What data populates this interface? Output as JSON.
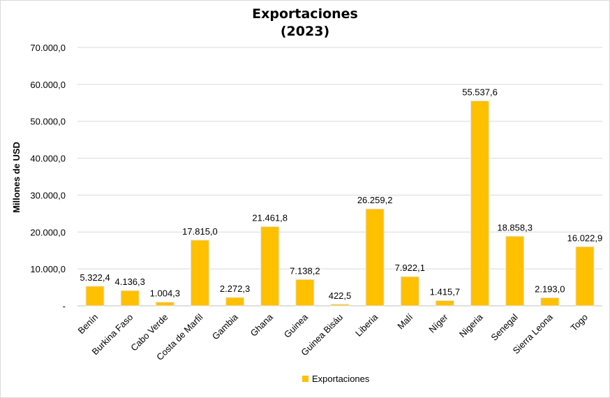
{
  "chart_data": {
    "type": "bar",
    "title": "Exportaciones",
    "subtitle": "(2023)",
    "ylabel": "Millones de USD",
    "xlabel": "",
    "ylim": [
      0,
      70000
    ],
    "yticks": [
      0,
      10000,
      20000,
      30000,
      40000,
      50000,
      60000,
      70000
    ],
    "ytick_labels": [
      "-",
      "10.000,0",
      "20.000,0",
      "30.000,0",
      "40.000,0",
      "50.000,0",
      "60.000,0",
      "70.000,0"
    ],
    "grid": true,
    "legend": "bottom",
    "bar_color": "#FFC000",
    "categories": [
      "Benín",
      "Burkina Faso",
      "Cabo Verde",
      "Costa de Marfil",
      "Gambia",
      "Ghana",
      "Guinea",
      "Guinea Bisáu",
      "Liberia",
      "Malí",
      "Níger",
      "Nigeria",
      "Senegal",
      "Sierra Leona",
      "Togo"
    ],
    "series": [
      {
        "name": "Exportaciones",
        "values": [
          5322.4,
          4136.3,
          1004.3,
          17815.0,
          2272.3,
          21461.8,
          7138.2,
          422.5,
          26259.2,
          7922.1,
          1415.7,
          55537.6,
          18858.3,
          2193.0,
          16022.9
        ],
        "labels": [
          "5.322,4",
          "4.136,3",
          "1.004,3",
          "17.815,0",
          "2.272,3",
          "21.461,8",
          "7.138,2",
          "422,5",
          "26.259,2",
          "7.922,1",
          "1.415,7",
          "55.537,6",
          "18.858,3",
          "2.193,0",
          "16.022,9"
        ]
      }
    ]
  }
}
